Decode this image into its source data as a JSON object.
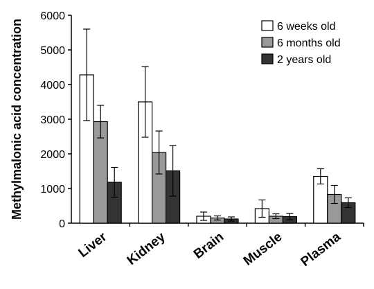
{
  "chart_data": {
    "type": "bar",
    "title": "",
    "xlabel": "",
    "ylabel": "Methylmalonic acid concentration",
    "ylim": [
      0,
      6000
    ],
    "yticks": [
      0,
      1000,
      2000,
      3000,
      4000,
      5000,
      6000
    ],
    "grid": false,
    "legend_position": "top-right",
    "categories": [
      "Liver",
      "Kidney",
      "Brain",
      "Muscle",
      "Plasma"
    ],
    "series": [
      {
        "name": "6 weeks old",
        "color": "#ffffff",
        "values": [
          4280,
          3500,
          200,
          420,
          1350
        ],
        "errors": [
          1320,
          1020,
          120,
          250,
          220
        ]
      },
      {
        "name": "6 months old",
        "color": "#999999",
        "values": [
          2930,
          2040,
          150,
          200,
          830
        ],
        "errors": [
          470,
          620,
          60,
          70,
          260
        ]
      },
      {
        "name": "2 years old",
        "color": "#333333",
        "values": [
          1180,
          1510,
          120,
          190,
          590
        ],
        "errors": [
          430,
          730,
          60,
          90,
          140
        ]
      }
    ]
  }
}
